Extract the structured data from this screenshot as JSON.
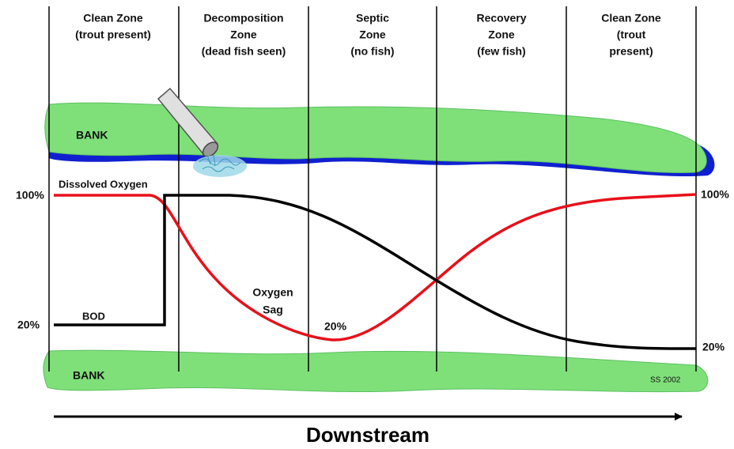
{
  "zones": [
    [
      "Clean Zone",
      "(trout present)"
    ],
    [
      "Decomposition",
      "Zone",
      "(dead fish seen)"
    ],
    [
      "Septic",
      "Zone",
      "(no fish)"
    ],
    [
      "Recovery",
      "Zone",
      "(few fish)"
    ],
    [
      "Clean Zone",
      "(trout",
      "present)"
    ]
  ],
  "bank_top": "BANK",
  "bank_bottom": "BANK",
  "dissolved_oxygen_label": "Dissolved Oxygen",
  "bod_label": "BOD",
  "oxygen_sag_label": [
    "Oxygen",
    "Sag"
  ],
  "sag_minimum_label": "20%",
  "left_axis": {
    "top": "100%",
    "bottom": "20%"
  },
  "right_axis": {
    "top": "100%",
    "bottom": "20%"
  },
  "credit": "SS 2002",
  "direction_label": "Downstream"
}
